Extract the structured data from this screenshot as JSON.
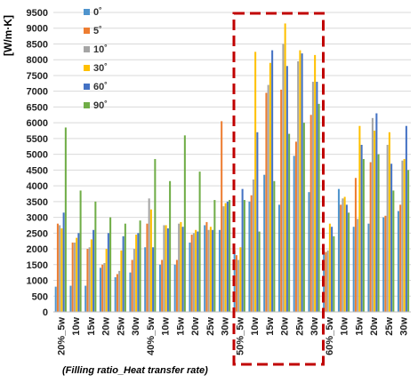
{
  "chart_data": {
    "type": "bar",
    "ylabel": "[W/m·K]",
    "xlabel": "(Filling ratio_Heat transfer rate)",
    "ylim": [
      0,
      9500
    ],
    "ytick_step": 500,
    "grid": true,
    "legend_position": "top-left",
    "categories": [
      "20%_5w",
      "10w",
      "15w",
      "20w",
      "25w",
      "30w",
      "40%_5w",
      "10w",
      "15w",
      "20w",
      "25w",
      "30w",
      "50%_5w",
      "10w",
      "15w",
      "20w",
      "25w",
      "30w",
      "60%_5w",
      "10w",
      "15w",
      "20w",
      "25w",
      "30w"
    ],
    "series": [
      {
        "name": "0˚",
        "color": "#4f94cd",
        "values": [
          800,
          830,
          830,
          1400,
          1100,
          1250,
          2050,
          1500,
          1500,
          2200,
          2750,
          2600,
          1950,
          3500,
          4350,
          3400,
          4950,
          3800,
          1950,
          3900,
          2700,
          2800,
          3000,
          3200
        ]
      },
      {
        "name": "5˚",
        "color": "#ed7d31",
        "values": [
          2800,
          2200,
          2000,
          1500,
          1200,
          1650,
          2800,
          1650,
          1650,
          2450,
          2850,
          6050,
          1800,
          3700,
          6950,
          7050,
          5400,
          6250,
          1900,
          3400,
          4250,
          4750,
          3050,
          3400
        ]
      },
      {
        "name": "10˚",
        "color": "#a5a5a5",
        "values": [
          2750,
          2200,
          2050,
          1550,
          1300,
          2000,
          3600,
          2750,
          2800,
          2500,
          2600,
          3350,
          1650,
          4200,
          7200,
          8500,
          7950,
          7300,
          1950,
          3600,
          2950,
          6150,
          5300,
          4800
        ]
      },
      {
        "name": "30˚",
        "color": "#ffc000",
        "values": [
          2650,
          2350,
          2300,
          2000,
          1950,
          2450,
          3250,
          2750,
          2850,
          2600,
          2700,
          3450,
          2050,
          8250,
          7900,
          9150,
          8300,
          8150,
          2800,
          3650,
          5900,
          5750,
          5700,
          4850
        ]
      },
      {
        "name": "60˚",
        "color": "#4472c4",
        "values": [
          3150,
          2500,
          2600,
          2500,
          2400,
          2500,
          2050,
          2650,
          2700,
          2550,
          2600,
          3500,
          3900,
          5700,
          8300,
          7800,
          8200,
          7300,
          2700,
          3400,
          5300,
          6300,
          4700,
          5900
        ]
      },
      {
        "name": "90˚",
        "color": "#70ad47",
        "values": [
          5850,
          3850,
          3500,
          3000,
          2800,
          2900,
          4850,
          4150,
          5600,
          4450,
          3550,
          3550,
          3550,
          2550,
          4150,
          5650,
          6000,
          6600,
          2400,
          3150,
          4850,
          5000,
          3850,
          4500
        ]
      }
    ],
    "highlight_groups": [
      12,
      17
    ]
  }
}
